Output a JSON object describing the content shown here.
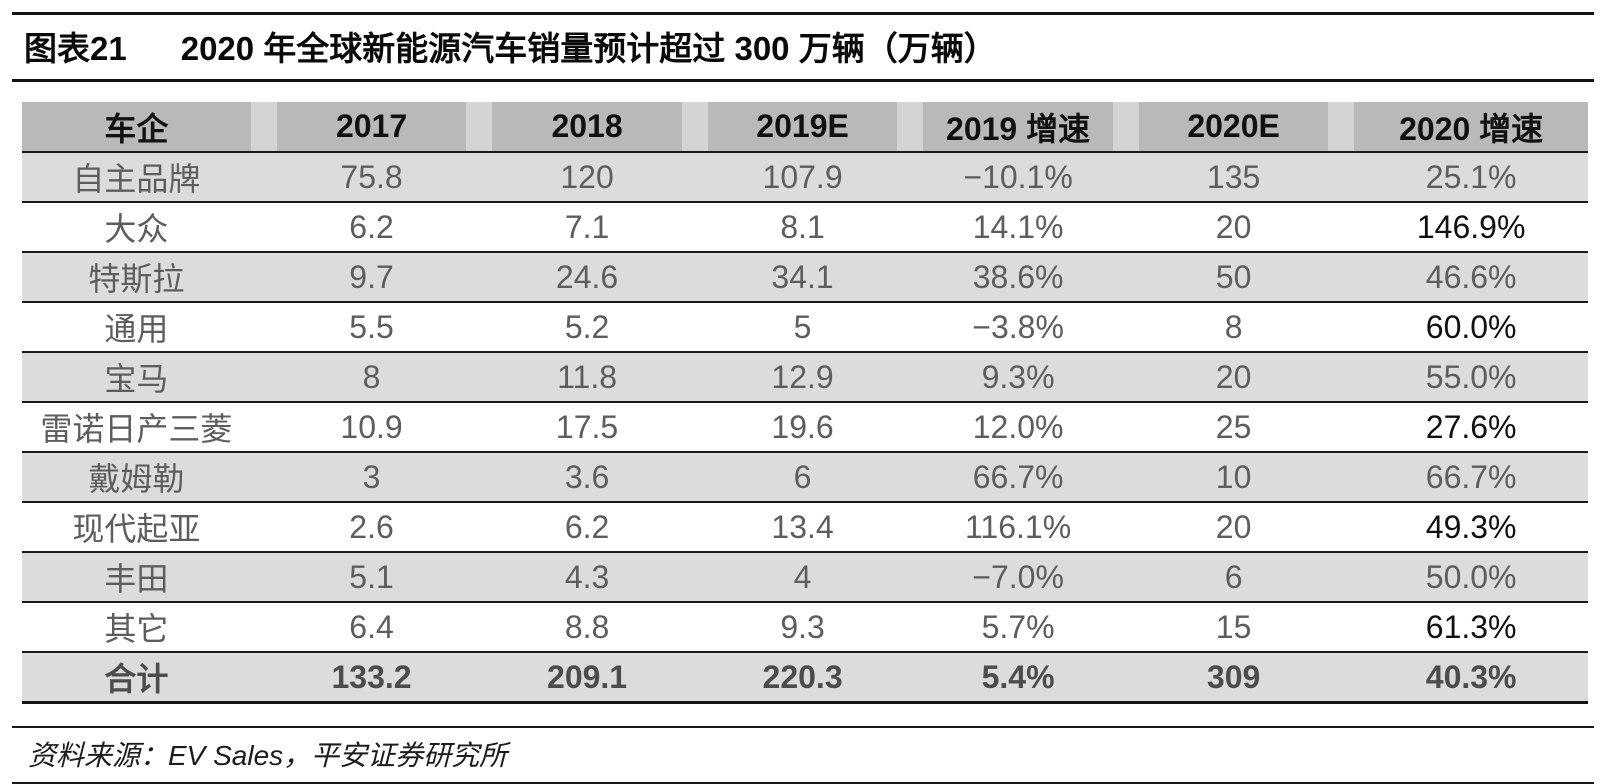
{
  "title": {
    "label": "图表21",
    "text": "2020 年全球新能源汽车销量预计超过 300 万辆（万辆）"
  },
  "table": {
    "columns": [
      "车企",
      "2017",
      "2018",
      "2019E",
      "2019 增速",
      "2020E",
      "2020 增速"
    ],
    "rows": [
      [
        "自主品牌",
        "75.8",
        "120",
        "107.9",
        "−10.1%",
        "135",
        "25.1%"
      ],
      [
        "大众",
        "6.2",
        "7.1",
        "8.1",
        "14.1%",
        "20",
        "146.9%"
      ],
      [
        "特斯拉",
        "9.7",
        "24.6",
        "34.1",
        "38.6%",
        "50",
        "46.6%"
      ],
      [
        "通用",
        "5.5",
        "5.2",
        "5",
        "−3.8%",
        "8",
        "60.0%"
      ],
      [
        "宝马",
        "8",
        "11.8",
        "12.9",
        "9.3%",
        "20",
        "55.0%"
      ],
      [
        "雷诺日产三菱",
        "10.9",
        "17.5",
        "19.6",
        "12.0%",
        "25",
        "27.6%"
      ],
      [
        "戴姆勒",
        "3",
        "3.6",
        "6",
        "66.7%",
        "10",
        "66.7%"
      ],
      [
        "现代起亚",
        "2.6",
        "6.2",
        "13.4",
        "116.1%",
        "20",
        "49.3%"
      ],
      [
        "丰田",
        "5.1",
        "4.3",
        "4",
        "−7.0%",
        "6",
        "50.0%"
      ],
      [
        "其它",
        "6.4",
        "8.8",
        "9.3",
        "5.7%",
        "15",
        "61.3%"
      ],
      [
        "合计",
        "133.2",
        "209.1",
        "220.3",
        "5.4%",
        "309",
        "40.3%"
      ]
    ],
    "total_row_label": "合计"
  },
  "footer": {
    "source": "资料来源：EV Sales，平安证券研究所"
  },
  "colors": {
    "header_bg": "#b9b9b9",
    "stripe_bg": "#dcdcdc",
    "rule": "#141414",
    "data_text": "#5d5d5d"
  }
}
